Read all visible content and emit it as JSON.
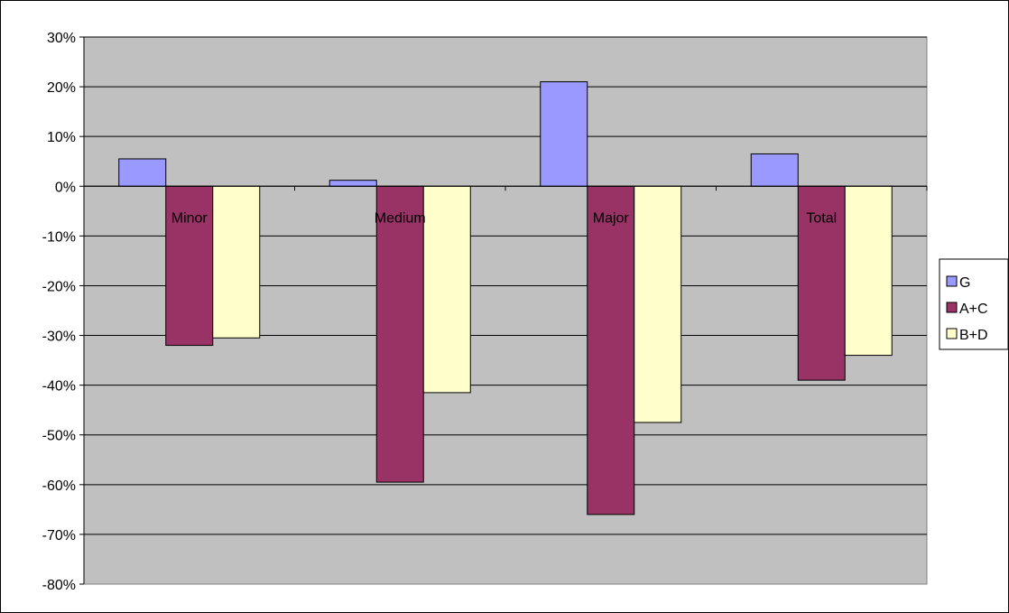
{
  "chart_data": {
    "type": "bar",
    "title": "",
    "xlabel": "",
    "ylabel": "",
    "categories": [
      "Minor",
      "Medium",
      "Major",
      "Total"
    ],
    "series": [
      {
        "name": "G",
        "color": "#9999ff",
        "values": [
          5.5,
          1.2,
          21.0,
          6.5
        ]
      },
      {
        "name": "A+C",
        "color": "#993366",
        "values": [
          -32.0,
          -59.5,
          -66.0,
          -39.0
        ]
      },
      {
        "name": "B+D",
        "color": "#ffffcc",
        "values": [
          -30.5,
          -41.5,
          -47.5,
          -34.0
        ]
      }
    ],
    "ylim": [
      -80,
      30
    ],
    "yticks": [
      30,
      20,
      10,
      0,
      -10,
      -20,
      -30,
      -40,
      -50,
      -60,
      -70,
      -80
    ],
    "ytick_labels": [
      "30%",
      "20%",
      "10%",
      "0%",
      "-10%",
      "-20%",
      "-30%",
      "-40%",
      "-50%",
      "-60%",
      "-70%",
      "-80%"
    ],
    "plot_background": "#c0c0c0",
    "gridlines": true,
    "legend_position": "right"
  }
}
